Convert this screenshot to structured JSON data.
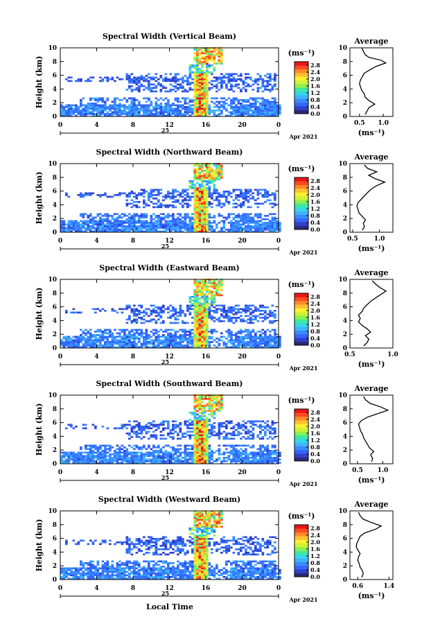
{
  "figure": {
    "xlabel": "Local Time",
    "colorbar_unit": "(ms⁻¹)",
    "avg_title": "Average",
    "avg_unit": "(ms⁻¹)",
    "day_label": "25",
    "date_label": "Apr 2021"
  },
  "colorscale": [
    "#2a2a78",
    "#3040c8",
    "#3366ff",
    "#3a8cff",
    "#40b4ff",
    "#36d8e8",
    "#3ee8a0",
    "#8cf050",
    "#d0f03a",
    "#fff030",
    "#ffc030",
    "#ff8a28",
    "#ff4a20",
    "#e81818"
  ],
  "chart_data": [
    {
      "type": "heatmap",
      "title": "Spectral Width (Vertical Beam)",
      "ylabel": "Height (km)",
      "x_ticks": [
        "0",
        "4",
        "8",
        "12",
        "16",
        "20",
        "0"
      ],
      "y_ticks": [
        "0",
        "2",
        "4",
        "6",
        "8",
        "10"
      ],
      "xlim": [
        0,
        24
      ],
      "ylim": [
        0,
        10
      ],
      "colorbar_ticks": [
        "0.0",
        "0.4",
        "0.8",
        "1.2",
        "1.6",
        "2.0",
        "2.4",
        "2.8"
      ],
      "colorbar_range": [
        0,
        3.0
      ],
      "avg_ticks": [
        "0.5",
        "1.0"
      ],
      "avg_xlim": [
        0.3,
        1.2
      ],
      "avg_profile": [
        {
          "h": 0.3,
          "v": 0.62
        },
        {
          "h": 0.8,
          "v": 0.66
        },
        {
          "h": 1.3,
          "v": 0.7
        },
        {
          "h": 1.8,
          "v": 0.82
        },
        {
          "h": 2.3,
          "v": 0.7
        },
        {
          "h": 2.8,
          "v": 0.62
        },
        {
          "h": 3.3,
          "v": 0.6
        },
        {
          "h": 3.8,
          "v": 0.55
        },
        {
          "h": 4.3,
          "v": 0.52
        },
        {
          "h": 4.8,
          "v": 0.5
        },
        {
          "h": 5.3,
          "v": 0.52
        },
        {
          "h": 5.8,
          "v": 0.56
        },
        {
          "h": 6.3,
          "v": 0.6
        },
        {
          "h": 6.8,
          "v": 0.72
        },
        {
          "h": 7.3,
          "v": 0.85
        },
        {
          "h": 7.8,
          "v": 1.05
        },
        {
          "h": 8.2,
          "v": 0.95
        },
        {
          "h": 8.6,
          "v": 0.7
        },
        {
          "h": 9.0,
          "v": 0.62
        },
        {
          "h": 9.5,
          "v": 0.58
        },
        {
          "h": 10.0,
          "v": 0.55
        }
      ]
    },
    {
      "type": "heatmap",
      "title": "Spectral Width (Northward Beam)",
      "ylabel": "Height (km)",
      "x_ticks": [
        "0",
        "4",
        "8",
        "12",
        "16",
        "20",
        "0"
      ],
      "y_ticks": [
        "0",
        "2",
        "4",
        "6",
        "8",
        "10"
      ],
      "xlim": [
        0,
        24
      ],
      "ylim": [
        0,
        10
      ],
      "colorbar_ticks": [
        "0.0",
        "0.4",
        "0.8",
        "1.2",
        "1.6",
        "2.0",
        "2.4",
        "2.8"
      ],
      "colorbar_range": [
        0,
        3.0
      ],
      "avg_ticks": [
        "0.5",
        "1.0"
      ],
      "avg_xlim": [
        0.45,
        1.25
      ],
      "avg_profile": [
        {
          "h": 0.3,
          "v": 0.68
        },
        {
          "h": 0.8,
          "v": 0.72
        },
        {
          "h": 1.3,
          "v": 0.7
        },
        {
          "h": 1.8,
          "v": 0.74
        },
        {
          "h": 2.3,
          "v": 0.68
        },
        {
          "h": 2.8,
          "v": 0.62
        },
        {
          "h": 3.3,
          "v": 0.6
        },
        {
          "h": 3.8,
          "v": 0.58
        },
        {
          "h": 4.3,
          "v": 0.6
        },
        {
          "h": 4.8,
          "v": 0.66
        },
        {
          "h": 5.3,
          "v": 0.72
        },
        {
          "h": 5.8,
          "v": 0.78
        },
        {
          "h": 6.3,
          "v": 0.85
        },
        {
          "h": 6.8,
          "v": 0.95
        },
        {
          "h": 7.3,
          "v": 1.1
        },
        {
          "h": 7.8,
          "v": 0.92
        },
        {
          "h": 8.3,
          "v": 0.8
        },
        {
          "h": 8.8,
          "v": 0.95
        },
        {
          "h": 9.3,
          "v": 0.78
        },
        {
          "h": 9.8,
          "v": 0.72
        }
      ]
    },
    {
      "type": "heatmap",
      "title": "Spectral Width (Eastward Beam)",
      "ylabel": "Height (km)",
      "x_ticks": [
        "0",
        "4",
        "8",
        "12",
        "16",
        "20",
        "0"
      ],
      "y_ticks": [
        "0",
        "2",
        "4",
        "6",
        "8",
        "10"
      ],
      "xlim": [
        0,
        24
      ],
      "ylim": [
        0,
        10
      ],
      "colorbar_ticks": [
        "0.0",
        "0.4",
        "0.8",
        "1.2",
        "1.6",
        "2.0",
        "2.4",
        "2.8"
      ],
      "colorbar_range": [
        0,
        3.0
      ],
      "avg_ticks": [
        "0.5",
        "1.0"
      ],
      "avg_xlim": [
        0.5,
        1.0
      ],
      "avg_profile": [
        {
          "h": 0.3,
          "v": 0.66
        },
        {
          "h": 0.8,
          "v": 0.7
        },
        {
          "h": 1.3,
          "v": 0.72
        },
        {
          "h": 1.8,
          "v": 0.68
        },
        {
          "h": 2.3,
          "v": 0.74
        },
        {
          "h": 2.8,
          "v": 0.7
        },
        {
          "h": 3.3,
          "v": 0.64
        },
        {
          "h": 3.8,
          "v": 0.6
        },
        {
          "h": 4.3,
          "v": 0.62
        },
        {
          "h": 4.8,
          "v": 0.6
        },
        {
          "h": 5.3,
          "v": 0.64
        },
        {
          "h": 5.8,
          "v": 0.66
        },
        {
          "h": 6.3,
          "v": 0.7
        },
        {
          "h": 6.8,
          "v": 0.74
        },
        {
          "h": 7.3,
          "v": 0.8
        },
        {
          "h": 7.8,
          "v": 0.86
        },
        {
          "h": 8.3,
          "v": 0.92
        },
        {
          "h": 8.8,
          "v": 0.85
        },
        {
          "h": 9.3,
          "v": 0.8
        },
        {
          "h": 9.8,
          "v": 0.76
        }
      ]
    },
    {
      "type": "heatmap",
      "title": "Spectral Width (Southward Beam)",
      "ylabel": "Height (km)",
      "x_ticks": [
        "0",
        "4",
        "8",
        "12",
        "16",
        "20",
        "0"
      ],
      "y_ticks": [
        "0",
        "2",
        "4",
        "6",
        "8",
        "10"
      ],
      "xlim": [
        0,
        24
      ],
      "ylim": [
        0,
        10
      ],
      "colorbar_ticks": [
        "0.0",
        "0.4",
        "0.8",
        "1.2",
        "1.6",
        "2.0",
        "2.4",
        "2.8"
      ],
      "colorbar_range": [
        0,
        3.0
      ],
      "avg_ticks": [
        "0.5",
        "1.0"
      ],
      "avg_xlim": [
        0.35,
        1.2
      ],
      "avg_profile": [
        {
          "h": 0.3,
          "v": 0.78
        },
        {
          "h": 0.8,
          "v": 0.8
        },
        {
          "h": 1.3,
          "v": 0.76
        },
        {
          "h": 1.8,
          "v": 0.82
        },
        {
          "h": 2.3,
          "v": 0.74
        },
        {
          "h": 2.8,
          "v": 0.7
        },
        {
          "h": 3.3,
          "v": 0.66
        },
        {
          "h": 3.8,
          "v": 0.62
        },
        {
          "h": 4.3,
          "v": 0.6
        },
        {
          "h": 4.8,
          "v": 0.56
        },
        {
          "h": 5.3,
          "v": 0.54
        },
        {
          "h": 5.8,
          "v": 0.52
        },
        {
          "h": 6.3,
          "v": 0.58
        },
        {
          "h": 6.8,
          "v": 0.7
        },
        {
          "h": 7.3,
          "v": 0.9
        },
        {
          "h": 7.8,
          "v": 1.1
        },
        {
          "h": 8.3,
          "v": 0.95
        },
        {
          "h": 8.8,
          "v": 0.75
        },
        {
          "h": 9.3,
          "v": 0.66
        },
        {
          "h": 9.8,
          "v": 0.62
        }
      ]
    },
    {
      "type": "heatmap",
      "title": "Spectral Width (Westward Beam)",
      "ylabel": "Height (km)",
      "x_ticks": [
        "0",
        "4",
        "8",
        "12",
        "16",
        "20",
        "0"
      ],
      "y_ticks": [
        "0",
        "2",
        "4",
        "6",
        "8",
        "10"
      ],
      "xlim": [
        0,
        24
      ],
      "ylim": [
        0,
        10
      ],
      "colorbar_ticks": [
        "0.0",
        "0.4",
        "0.8",
        "1.2",
        "1.6",
        "2.0",
        "2.4",
        "2.8"
      ],
      "colorbar_range": [
        0,
        3.0
      ],
      "avg_ticks": [
        "0.6",
        "1.4"
      ],
      "avg_xlim": [
        0.4,
        1.5
      ],
      "avg_profile": [
        {
          "h": 0.3,
          "v": 0.7
        },
        {
          "h": 0.8,
          "v": 0.74
        },
        {
          "h": 1.3,
          "v": 0.72
        },
        {
          "h": 1.8,
          "v": 0.66
        },
        {
          "h": 2.3,
          "v": 0.64
        },
        {
          "h": 2.8,
          "v": 0.6
        },
        {
          "h": 3.3,
          "v": 0.62
        },
        {
          "h": 3.8,
          "v": 0.66
        },
        {
          "h": 4.3,
          "v": 0.6
        },
        {
          "h": 4.8,
          "v": 0.56
        },
        {
          "h": 5.3,
          "v": 0.58
        },
        {
          "h": 5.8,
          "v": 0.62
        },
        {
          "h": 6.3,
          "v": 0.66
        },
        {
          "h": 6.8,
          "v": 0.78
        },
        {
          "h": 7.3,
          "v": 1.05
        },
        {
          "h": 7.8,
          "v": 1.2
        },
        {
          "h": 8.3,
          "v": 0.95
        },
        {
          "h": 8.8,
          "v": 0.74
        },
        {
          "h": 9.3,
          "v": 0.66
        },
        {
          "h": 9.8,
          "v": 0.62
        }
      ]
    }
  ]
}
